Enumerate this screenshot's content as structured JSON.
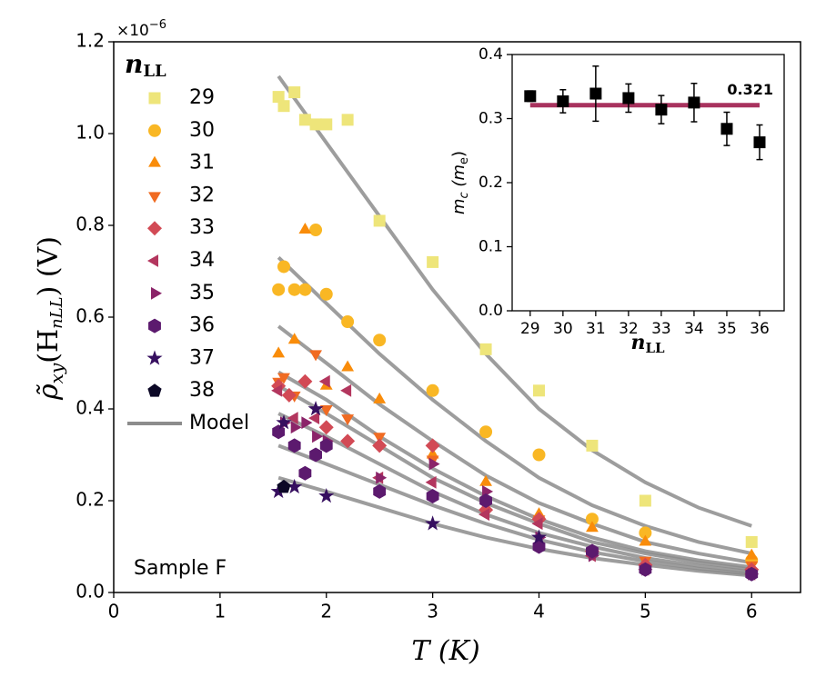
{
  "chart_data": [
    {
      "type": "scatter",
      "offset_text": {
        "base": "×10",
        "exp": "−6"
      },
      "ylabel": {
        "symbol": "ρ̃",
        "sub": "xy",
        "arg": "(H",
        "argsub": "nLL",
        "rest": ") (V)"
      },
      "xlabel": "T (K)",
      "annotation": "Sample F",
      "legend_title": {
        "symbol": "n",
        "sub": "LL"
      },
      "xlim": [
        0,
        6.46
      ],
      "xticks": [
        0,
        1,
        2,
        3,
        4,
        5,
        6
      ],
      "ylim": [
        0,
        1.2
      ],
      "yticks": [
        {
          "value": 0,
          "label": "0.0"
        },
        0.2,
        0.4,
        0.6,
        0.8,
        {
          "value": 1,
          "label": "1.0"
        },
        1.2
      ],
      "series": [
        {
          "name": "29",
          "color": "#eee57a",
          "marker": "square",
          "x": [
            1.55,
            1.6,
            1.7,
            1.8,
            1.9,
            2.0,
            2.2,
            2.5,
            3.0,
            3.5,
            4.0,
            4.5,
            5.0,
            6.0
          ],
          "values": [
            1.08,
            1.06,
            1.09,
            1.03,
            1.02,
            1.02,
            1.03,
            0.81,
            0.72,
            0.53,
            0.44,
            0.32,
            0.2,
            0.11
          ]
        },
        {
          "name": "30",
          "color": "#f9b724",
          "marker": "circle",
          "x": [
            1.55,
            1.6,
            1.7,
            1.8,
            1.9,
            2.0,
            2.2,
            2.5,
            3.0,
            3.5,
            4.0,
            4.5,
            5.0,
            6.0
          ],
          "values": [
            0.66,
            0.71,
            0.66,
            0.66,
            0.79,
            0.65,
            0.59,
            0.55,
            0.44,
            0.35,
            0.3,
            0.16,
            0.13,
            0.07
          ]
        },
        {
          "name": "31",
          "color": "#f98c0a",
          "marker": "triangle-up",
          "x": [
            1.55,
            1.7,
            1.8,
            2.0,
            2.2,
            2.5,
            3.0,
            3.5,
            4.0,
            4.5,
            5.0,
            6.0
          ],
          "values": [
            0.52,
            0.55,
            0.79,
            0.45,
            0.49,
            0.42,
            0.3,
            0.24,
            0.17,
            0.14,
            0.11,
            0.08
          ]
        },
        {
          "name": "32",
          "color": "#f06b22",
          "marker": "triangle-down",
          "x": [
            1.55,
            1.6,
            1.7,
            1.9,
            2.0,
            2.2,
            2.5,
            3.0,
            3.5,
            4.0,
            4.5,
            5.0,
            6.0
          ],
          "values": [
            0.46,
            0.47,
            0.43,
            0.52,
            0.4,
            0.38,
            0.34,
            0.29,
            0.19,
            0.16,
            0.09,
            0.07,
            0.06
          ]
        },
        {
          "name": "33",
          "color": "#d24a55",
          "marker": "diamond",
          "x": [
            1.55,
            1.65,
            1.8,
            2.0,
            2.2,
            2.5,
            3.0,
            3.5,
            4.0,
            4.5,
            5.0,
            6.0
          ],
          "values": [
            0.45,
            0.43,
            0.46,
            0.36,
            0.33,
            0.32,
            0.32,
            0.18,
            0.16,
            0.09,
            0.06,
            0.05
          ]
        },
        {
          "name": "34",
          "color": "#b3365e",
          "marker": "triangle-left",
          "x": [
            1.55,
            1.7,
            1.9,
            2.0,
            2.2,
            2.5,
            3.0,
            3.5,
            4.0,
            4.5,
            5.0,
            6.0
          ],
          "values": [
            0.44,
            0.38,
            0.38,
            0.46,
            0.44,
            0.25,
            0.24,
            0.17,
            0.15,
            0.08,
            0.05,
            0.04
          ]
        },
        {
          "name": "35",
          "color": "#8b2469",
          "marker": "triangle-right",
          "x": [
            1.6,
            1.7,
            1.8,
            1.9,
            2.0,
            2.5,
            3.0,
            3.5,
            4.0,
            4.5,
            5.0,
            6.0
          ],
          "values": [
            0.37,
            0.36,
            0.37,
            0.34,
            0.33,
            0.25,
            0.28,
            0.22,
            0.12,
            0.08,
            0.05,
            0.04
          ]
        },
        {
          "name": "36",
          "color": "#5c1a6e",
          "marker": "hexagon",
          "x": [
            1.55,
            1.7,
            1.8,
            1.9,
            2.0,
            2.5,
            3.0,
            3.5,
            4.0,
            4.5,
            5.0,
            6.0
          ],
          "values": [
            0.35,
            0.32,
            0.26,
            0.3,
            0.32,
            0.22,
            0.21,
            0.2,
            0.1,
            0.09,
            0.05,
            0.04
          ]
        },
        {
          "name": "37",
          "color": "#360f5f",
          "marker": "star",
          "x": [
            1.55,
            1.6,
            1.7,
            1.9,
            2.0,
            3.0,
            4.0
          ],
          "values": [
            0.22,
            0.37,
            0.23,
            0.4,
            0.21,
            0.15,
            0.12
          ]
        },
        {
          "name": "38",
          "color": "#0c0826",
          "marker": "pentagon",
          "x": [
            1.6
          ],
          "values": [
            0.23
          ]
        }
      ],
      "model": {
        "name": "Model",
        "color": "#8c8c8c",
        "x": [
          1.55,
          2.0,
          2.5,
          3.0,
          3.5,
          4.0,
          4.5,
          5.0,
          5.5,
          6.0
        ],
        "curves": [
          [
            1.125,
            0.98,
            0.82,
            0.66,
            0.52,
            0.4,
            0.31,
            0.24,
            0.185,
            0.145
          ],
          [
            0.73,
            0.63,
            0.52,
            0.42,
            0.33,
            0.25,
            0.19,
            0.145,
            0.11,
            0.085
          ],
          [
            0.58,
            0.5,
            0.41,
            0.33,
            0.255,
            0.195,
            0.15,
            0.11,
            0.085,
            0.065
          ],
          [
            0.48,
            0.42,
            0.34,
            0.27,
            0.21,
            0.16,
            0.12,
            0.09,
            0.07,
            0.055
          ],
          [
            0.45,
            0.39,
            0.32,
            0.25,
            0.195,
            0.15,
            0.11,
            0.085,
            0.065,
            0.05
          ],
          [
            0.39,
            0.34,
            0.28,
            0.22,
            0.17,
            0.13,
            0.1,
            0.075,
            0.058,
            0.045
          ],
          [
            0.32,
            0.28,
            0.235,
            0.19,
            0.15,
            0.115,
            0.088,
            0.068,
            0.052,
            0.04
          ],
          [
            0.25,
            0.22,
            0.185,
            0.15,
            0.12,
            0.095,
            0.075,
            0.06,
            0.047,
            0.037
          ]
        ]
      }
    },
    {
      "type": "errorbar",
      "xlabel": {
        "symbol": "n",
        "sub": "LL"
      },
      "ylabel": {
        "symbol": "m",
        "sub": "c",
        "open": " (m",
        "sub2": "e",
        "close": ")"
      },
      "xlim": [
        28.45,
        36.75
      ],
      "xticks": [
        29,
        30,
        31,
        32,
        33,
        34,
        35,
        36
      ],
      "ylim": [
        0,
        0.4
      ],
      "yticks": [
        {
          "value": 0,
          "label": "0.0"
        },
        0.1,
        0.2,
        0.3,
        0.4
      ],
      "color": "#000000",
      "x": [
        29,
        30,
        31,
        32,
        33,
        34,
        35,
        36
      ],
      "values": [
        0.335,
        0.327,
        0.339,
        0.332,
        0.314,
        0.325,
        0.284,
        0.263
      ],
      "errors": [
        0.008,
        0.018,
        0.043,
        0.022,
        0.022,
        0.03,
        0.026,
        0.027
      ],
      "fit_value": 0.321,
      "fit_color": "#a8325e"
    }
  ]
}
